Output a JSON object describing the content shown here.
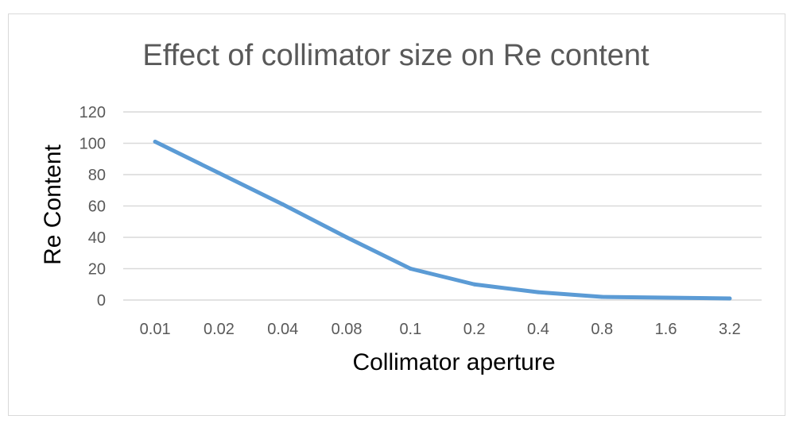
{
  "chart_data": {
    "type": "line",
    "title": "Effect of collimator size on Re content",
    "xlabel": "Collimator aperture",
    "ylabel": "Re  Content",
    "categories": [
      "0.01",
      "0.02",
      "0.04",
      "0.08",
      "0.1",
      "0.2",
      "0.4",
      "0.8",
      "1.6",
      "3.2"
    ],
    "series": [
      {
        "values": [
          101,
          81,
          61,
          40,
          20,
          10,
          5,
          2,
          1.5,
          1
        ],
        "color": "#5b9bd5"
      }
    ],
    "ylim": [
      0,
      120
    ],
    "yticks": [
      "0",
      "20",
      "40",
      "60",
      "80",
      "100",
      "120"
    ],
    "grid": true,
    "legend": "none"
  }
}
